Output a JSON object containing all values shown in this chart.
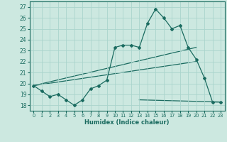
{
  "xlabel": "Humidex (Indice chaleur)",
  "xlim": [
    -0.5,
    23.5
  ],
  "ylim": [
    17.5,
    27.5
  ],
  "yticks": [
    18,
    19,
    20,
    21,
    22,
    23,
    24,
    25,
    26,
    27
  ],
  "xticks": [
    0,
    1,
    2,
    3,
    4,
    5,
    6,
    7,
    8,
    9,
    10,
    11,
    12,
    13,
    14,
    15,
    16,
    17,
    18,
    19,
    20,
    21,
    22,
    23
  ],
  "background_color": "#cce8e0",
  "grid_color": "#aad4cc",
  "line_color": "#1a6b60",
  "line1_x": [
    0,
    1,
    2,
    3,
    4,
    5,
    6,
    7,
    8,
    9,
    10,
    11,
    12,
    13,
    14,
    15,
    16,
    17,
    18,
    19,
    20,
    21,
    22,
    23
  ],
  "line1_y": [
    19.8,
    19.3,
    18.8,
    19.0,
    18.5,
    18.0,
    18.5,
    19.5,
    19.8,
    20.3,
    23.3,
    23.5,
    23.5,
    23.3,
    25.5,
    26.8,
    26.0,
    25.0,
    25.3,
    23.3,
    22.2,
    20.5,
    18.3,
    18.3
  ],
  "line2_x": [
    0,
    20
  ],
  "line2_y": [
    19.8,
    23.3
  ],
  "line3_x": [
    0,
    20
  ],
  "line3_y": [
    19.8,
    22.0
  ],
  "line4_x": [
    13,
    23
  ],
  "line4_y": [
    18.5,
    18.3
  ]
}
